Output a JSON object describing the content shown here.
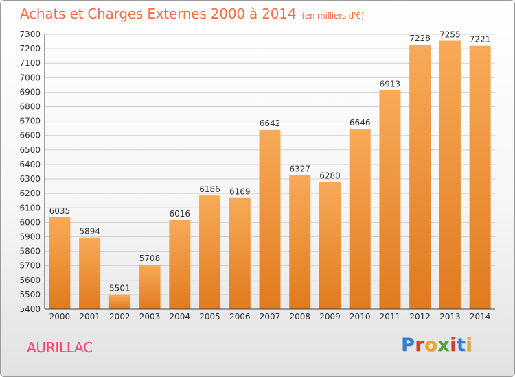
{
  "header": {
    "title": "Achats et Charges Externes 2000 à 2014",
    "subtitle": "(en milliers d'€)"
  },
  "footer": {
    "commune": "AURILLAC",
    "logo_text": "Proxiti"
  },
  "colors": {
    "title": "#ff6a3d",
    "commune": "#ff3d6a",
    "bar_light": "#f8aa58",
    "bar_dark": "#e07a1e",
    "logo_letters": [
      "#2f7fd8",
      "#e03a2a",
      "#f2a21b",
      "#4aa83a",
      "#e03a2a",
      "#2f7fd8",
      "#f2a21b"
    ]
  },
  "chart_data": {
    "type": "bar",
    "title": "Achats et Charges Externes 2000 à 2014",
    "subtitle": "(en milliers d'€)",
    "categories": [
      "2000",
      "2001",
      "2002",
      "2003",
      "2004",
      "2005",
      "2006",
      "2007",
      "2008",
      "2009",
      "2010",
      "2011",
      "2012",
      "2013",
      "2014"
    ],
    "values": [
      6035,
      5894,
      5501,
      5708,
      6016,
      6186,
      6169,
      6642,
      6327,
      6280,
      6646,
      6913,
      7228,
      7255,
      7221
    ],
    "ylim": [
      5400,
      7300
    ],
    "yticks": [
      5400,
      5500,
      5600,
      5700,
      5800,
      5900,
      6000,
      6100,
      6200,
      6300,
      6400,
      6500,
      6600,
      6700,
      6800,
      6900,
      7000,
      7100,
      7200,
      7300
    ],
    "grid": true,
    "data_labels": true
  }
}
